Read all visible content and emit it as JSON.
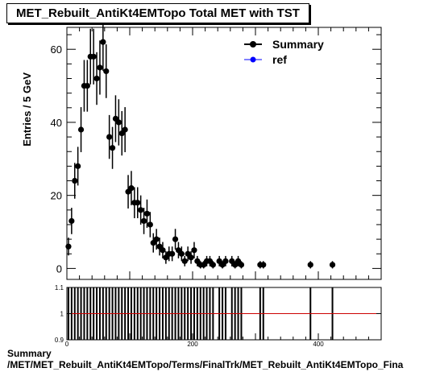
{
  "title": "MET_Rebuilt_AntiKt4EMTopo Total MET with TST",
  "footer_line1": "Summary",
  "footer_line2": "/MET/MET_Rebuilt_AntiKt4EMTopo/Terms/FinalTrk/MET_Rebuilt_AntiKt4EMTopo_Fina",
  "colors": {
    "summary": "#000000",
    "ref": "#0000ff",
    "ratio_line": "#cc0000"
  },
  "chart_data": [
    {
      "type": "scatter",
      "title": "MET_Rebuilt_AntiKt4EMTopo Total MET with TST",
      "xlabel": "",
      "ylabel": "Entries / 5 GeV",
      "xlim": [
        0,
        500
      ],
      "ylim": [
        -3,
        66
      ],
      "yticks": [
        0,
        20,
        40,
        60
      ],
      "legend": {
        "position": "top-right",
        "entries": [
          "Summary",
          "ref"
        ]
      },
      "grid": false,
      "series": [
        {
          "name": "Summary",
          "x": [
            2.5,
            7.5,
            12.5,
            17.5,
            22.5,
            27.5,
            32.5,
            37.5,
            42.5,
            47.5,
            52.5,
            57.5,
            62.5,
            67.5,
            72.5,
            77.5,
            82.5,
            87.5,
            92.5,
            97.5,
            102.5,
            107.5,
            112.5,
            117.5,
            122.5,
            127.5,
            132.5,
            137.5,
            142.5,
            147.5,
            152.5,
            157.5,
            162.5,
            167.5,
            172.5,
            177.5,
            182.5,
            187.5,
            192.5,
            197.5,
            202.5,
            207.5,
            212.5,
            217.5,
            222.5,
            227.5,
            232.5,
            242.5,
            247.5,
            252.5,
            262.5,
            267.5,
            272.5,
            277.5,
            307.5,
            312.5,
            387.5,
            422.5
          ],
          "y": [
            6,
            13,
            24,
            28,
            38,
            50,
            50,
            58,
            58,
            52,
            55,
            62,
            54,
            36,
            33,
            41,
            40,
            37,
            38,
            21,
            22,
            18,
            18,
            16,
            13,
            15,
            12,
            7,
            8,
            6,
            5,
            3,
            4,
            4,
            8,
            5,
            4,
            2,
            4,
            3,
            5,
            2,
            1,
            1,
            2,
            2,
            1,
            2,
            1,
            2,
            2,
            1,
            2,
            1,
            1,
            1,
            1,
            1
          ]
        },
        {
          "name": "ref",
          "x": [],
          "y": []
        }
      ]
    },
    {
      "type": "scatter",
      "xlim": [
        0,
        500
      ],
      "ylim": [
        0.9,
        1.1
      ],
      "xticks": [
        0,
        200,
        400
      ],
      "yticks": [
        0.9,
        1,
        1.1
      ],
      "reference_line": 1
    }
  ]
}
